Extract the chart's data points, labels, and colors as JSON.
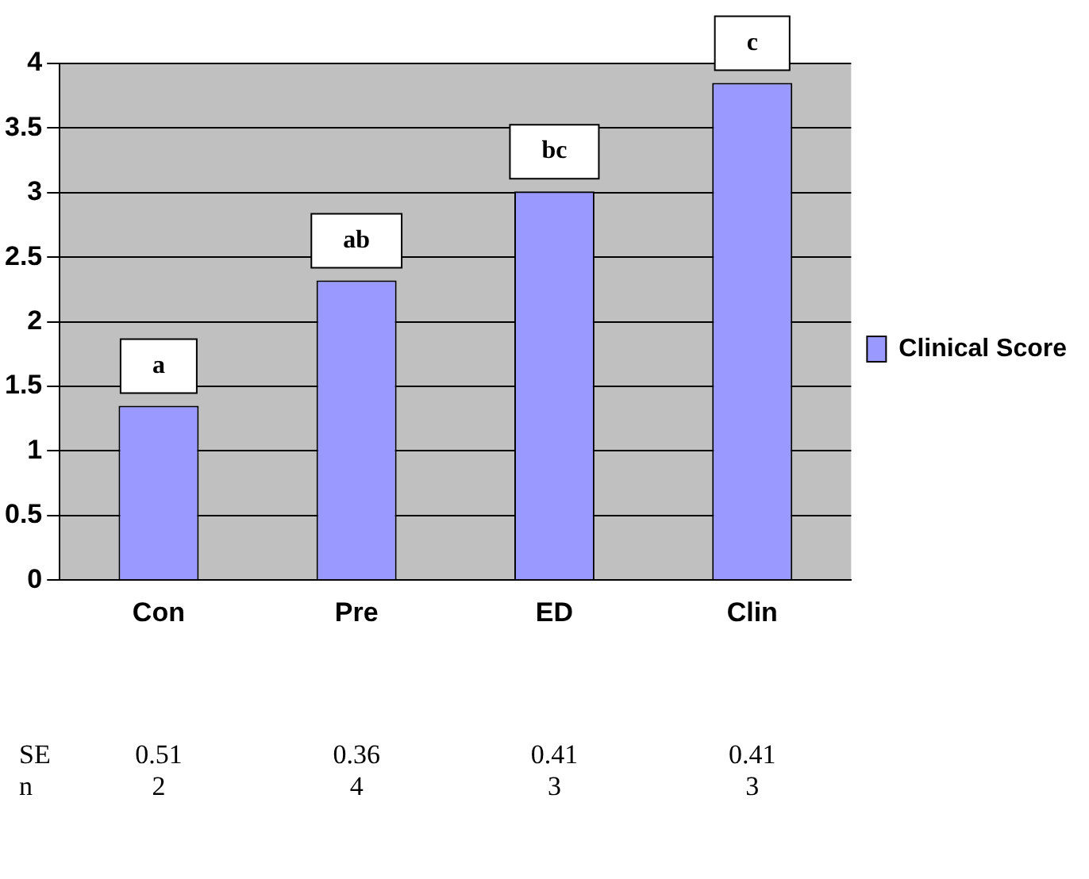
{
  "chart_data": {
    "type": "bar",
    "categories": [
      "Con",
      "Pre",
      "ED",
      "Clin"
    ],
    "series": [
      {
        "name": "Clinical Score",
        "color": "#9999ff",
        "values": [
          1.35,
          2.32,
          3.01,
          3.85
        ]
      }
    ],
    "ylim": [
      0,
      4
    ],
    "yticks": [
      0,
      0.5,
      1,
      1.5,
      2,
      2.5,
      3,
      3.5,
      4
    ],
    "grid": "y",
    "legend": "right",
    "annotations": [
      "a",
      "ab",
      "bc",
      "c",
      "SE",
      "0.51",
      "0.36",
      "0.41",
      "0.41",
      "n",
      "2",
      "4",
      "3",
      "3"
    ]
  }
}
